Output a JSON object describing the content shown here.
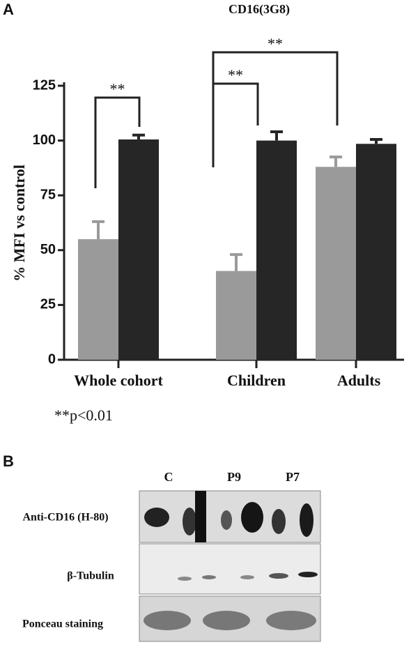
{
  "chart_data": {
    "type": "bar",
    "panel_label": "A",
    "title": "CD16(3G8)",
    "ylabel": "% MFI vs control",
    "categories": [
      "Whole cohort",
      "Children",
      "Adults"
    ],
    "series": [
      {
        "color": "#9a9a9a",
        "values": [
          55,
          40.5,
          88
        ],
        "errors": [
          8,
          7.5,
          4.5
        ]
      },
      {
        "color": "#262626",
        "values": [
          100.5,
          100,
          98.5
        ],
        "errors": [
          2,
          4,
          2
        ]
      }
    ],
    "ylim": [
      0,
      125
    ],
    "yticks": [
      0,
      25,
      50,
      75,
      100,
      125
    ],
    "brackets": [
      {
        "label": "**"
      },
      {
        "label": "**"
      },
      {
        "label": "**"
      }
    ],
    "footnote": "**p<0.01"
  },
  "panel_b": {
    "label": "B",
    "columns": [
      "C",
      "P9",
      "P7"
    ],
    "rows": [
      "Anti-CD16 (H-80)",
      "β-Tubulin",
      "Ponceau staining"
    ]
  }
}
